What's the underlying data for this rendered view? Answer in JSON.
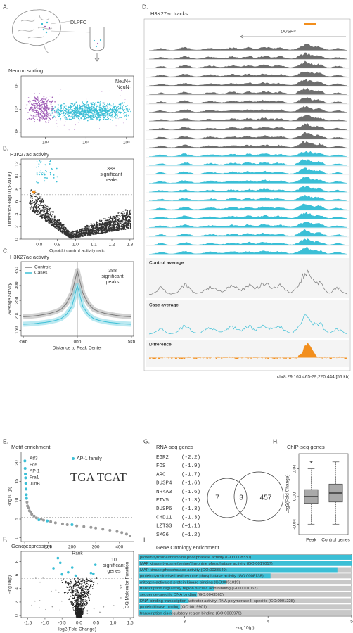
{
  "chart_data": [
    {
      "type": "scatter",
      "panel": "A.",
      "label": "DLPFC",
      "title": "Neuron sorting",
      "series": [
        {
          "name": "NeuN+",
          "color": "#3bbfd6"
        },
        {
          "name": "NeuN-",
          "color": "#a160b8"
        }
      ],
      "xscale": "log",
      "yscale": "log",
      "xlim": [
        250,
        150000
      ],
      "xticks": [
        {
          "value": 1000,
          "label": "10³"
        },
        {
          "value": 10000,
          "label": "10⁴"
        },
        {
          "value": 100000,
          "label": "10⁵"
        }
      ],
      "ylim": [
        60,
        30000
      ],
      "yticks": [
        {
          "value": 100,
          "label": "10²"
        },
        {
          "value": 1000,
          "label": "10³"
        },
        {
          "value": 10000,
          "label": "10⁴"
        }
      ]
    },
    {
      "type": "scatter",
      "panel": "B.",
      "title": "H3K27ac activity",
      "annotation": [
        "388",
        "significant",
        "peaks"
      ],
      "xlabel": "Opioid / control activity ratio",
      "ylabel": "Difference -log10 (p-value)",
      "xlim": [
        0.7,
        1.32
      ],
      "xticks": [
        0.8,
        0.9,
        {
          "value": 1,
          "label": "1.0"
        },
        1.1,
        1.2,
        1.3
      ],
      "ylim": [
        0,
        12.8
      ],
      "yticks": [
        0,
        2,
        4,
        6,
        8,
        10,
        12
      ],
      "threshold": 7.1,
      "highlight": {
        "x": 0.77,
        "y": 7.5,
        "color": "#f28e1c"
      },
      "color": "#333333",
      "sig_color": "#3bbfd6"
    },
    {
      "type": "line",
      "panel": "C.",
      "title": "H3K27ac activity",
      "annotation": [
        "388",
        "significant",
        "peaks"
      ],
      "xlabel": "Distance to Peak Center",
      "ylabel": "Average activity",
      "x": [
        -5,
        -4.5,
        -4,
        -3.5,
        -3,
        -2.5,
        -2,
        -1.5,
        -1,
        -0.5,
        0,
        0.5,
        1,
        1.5,
        2,
        2.5,
        3,
        3.5,
        4,
        4.5,
        5
      ],
      "series": [
        {
          "name": "Controls",
          "color": "#7a7a7a",
          "values": [
            195,
            196,
            198,
            200,
            203,
            207,
            212,
            220,
            240,
            275,
            350,
            275,
            240,
            220,
            212,
            207,
            203,
            200,
            198,
            196,
            195
          ]
        },
        {
          "name": "Cases",
          "color": "#3bbfd6",
          "values": [
            170,
            171,
            172,
            174,
            176,
            179,
            183,
            189,
            203,
            230,
            300,
            230,
            203,
            189,
            183,
            179,
            176,
            174,
            172,
            171,
            170
          ]
        }
      ],
      "xlim": [
        -5.2,
        5.2
      ],
      "xticks": [
        {
          "value": -5,
          "label": "-5kb"
        },
        {
          "value": 0,
          "label": "0bp"
        },
        {
          "value": 5,
          "label": "5kb"
        }
      ],
      "ylim": [
        130,
        380
      ],
      "yticks": [
        150,
        200,
        250,
        300,
        350
      ]
    },
    {
      "type": "tracks",
      "panel": "D.",
      "title": "H3K27ac tracks",
      "gene": "DUSP4",
      "highlight_color": "#f28e1c",
      "groups": [
        {
          "color": "#6e6e6e",
          "count": 12
        },
        {
          "color": "#3bbfd6",
          "count": 12
        }
      ],
      "averages": [
        {
          "name": "Control average",
          "color": "#7a7a7a"
        },
        {
          "name": "Case average",
          "color": "#3bbfd6"
        },
        {
          "name": "Difference",
          "color": "#f28e1c"
        }
      ],
      "coordinates": "chr8:29,163,465-29,220,444 [56 kb]"
    },
    {
      "type": "scatter",
      "panel": "E.",
      "title": "Motif enrichment",
      "xlabel": "Rank",
      "ylabel": "-log10 (p)",
      "xlim": [
        -15,
        460
      ],
      "xticks": [
        0,
        100,
        200,
        300,
        400
      ],
      "ylim": [
        -1,
        23
      ],
      "yticks": [
        0,
        5,
        10,
        15,
        20
      ],
      "threshold": 5.5,
      "series": [
        {
          "name": "AP-1 family",
          "color": "#3bbfd6",
          "x": [
            1,
            2,
            3,
            4,
            5,
            6,
            7,
            8,
            60,
            95,
            200
          ],
          "values": [
            20.5,
            18.5,
            17,
            16,
            14.5,
            13,
            11.5,
            10.5,
            4.8,
            4.5,
            3.5
          ]
        },
        {
          "color": "#9a9a9a",
          "x": [
            10,
            12,
            15,
            20,
            25,
            30,
            40,
            50,
            70,
            80,
            110,
            130,
            160,
            180,
            220,
            250,
            280,
            300,
            330,
            360,
            390,
            410,
            430,
            445
          ],
          "values": [
            9.5,
            8.5,
            8,
            7.2,
            6.8,
            6.3,
            5.8,
            5.3,
            4.9,
            4.7,
            4.3,
            4.0,
            3.7,
            3.5,
            3.2,
            3.0,
            2.8,
            2.6,
            2.3,
            2.0,
            1.7,
            1.4,
            1.0,
            0.5
          ]
        }
      ],
      "motifs": [
        {
          "text": "Atf3",
          "color": "#3bbfd6"
        },
        {
          "text": "Fos",
          "color": "#3bbfd6"
        },
        {
          "text": "AP-1",
          "color": "#3bbfd6"
        },
        {
          "text": "Fra1",
          "color": "#9a9a9a"
        },
        {
          "text": "JunB",
          "color": "#9a9a9a"
        }
      ],
      "logo": "TGA TCAT"
    },
    {
      "type": "scatter",
      "panel": "F.",
      "title": "Gene expression",
      "annotation": [
        "10",
        "significant",
        "genes"
      ],
      "xlabel": "log2(Fold Change)",
      "ylabel": "-log10(p)",
      "xlim": [
        -1.7,
        1.6
      ],
      "xticks": [
        -1.5,
        {
          "value": -1,
          "label": "-1.0"
        },
        -0.5,
        {
          "value": 0,
          "label": "0.0"
        },
        0.5,
        {
          "value": 1,
          "label": "1.0"
        },
        1.5
      ],
      "ylim": [
        -0.3,
        9.5
      ],
      "yticks": [
        0,
        2,
        4,
        6,
        8
      ],
      "threshold": 5.5,
      "series": [
        {
          "color": "#3bbfd6",
          "x": [
            -0.62,
            -0.55,
            -0.75,
            -0.2,
            -0.5,
            -0.32,
            -0.1,
            0.35,
            0.48,
            0.42
          ],
          "values": [
            8.5,
            7.8,
            7.0,
            7.1,
            6.1,
            6.4,
            5.9,
            6.3,
            7.5,
            6.2
          ]
        }
      ]
    },
    {
      "type": "list",
      "panel": "G.",
      "title": "RNA-seq genes",
      "highlight_color": "#3bbfd6",
      "genes": [
        {
          "name": "EGR2",
          "value": "(-2.2)"
        },
        {
          "name": "FOS",
          "value": "(-1.9)"
        },
        {
          "name": "ARC",
          "value": "(-1.7)"
        },
        {
          "name": "DUSP4",
          "value": "(-1.6)",
          "highlight": true
        },
        {
          "name": "NR4A3",
          "value": "(-1.6)"
        },
        {
          "name": "ETV5",
          "value": "(-1.3)",
          "highlight": true
        },
        {
          "name": "DUSP6",
          "value": "(-1.3)",
          "highlight": true
        },
        {
          "name": "CHD11",
          "value": "(-1.3)"
        },
        {
          "name": "LZTS3",
          "value": "(+1.1)"
        },
        {
          "name": "SMG6",
          "value": "(+1.2)"
        }
      ],
      "venn": {
        "left": 7,
        "overlap": 3,
        "right": 457
      }
    },
    {
      "type": "box",
      "panel": "H.",
      "title": "ChIP-seq genes",
      "ylabel": "Log2(Fold Change)",
      "annotation": "*",
      "categories": [
        "Peak",
        "Control genes"
      ],
      "color": "#a9a9a9",
      "boxes": [
        {
          "whislo": -0.04,
          "q1": -0.01,
          "med": 0.0,
          "q3": 0.01,
          "whishi": 0.04
        },
        {
          "whislo": -0.04,
          "q1": -0.008,
          "med": 0.005,
          "q3": 0.018,
          "whishi": 0.05
        }
      ],
      "ylim": [
        -0.055,
        0.062
      ],
      "yticks": [
        -0.04,
        {
          "value": 0,
          "label": "0.00"
        },
        0.04
      ]
    },
    {
      "type": "bar",
      "panel": "I.",
      "title": "Gene Ontology enrichment",
      "xlabel": "-log10(p)",
      "ylabel": "GO Molecular Function",
      "categories": [
        "protein tyrosine/threonine phosphatase activity (GO:0008330)",
        "MAP kinase tyrosine/serine/threonine phosphatase activity (GO:0017017)",
        "MAP kinase phosphatase activity (GO:0033549)",
        "protein tyrosine/serine/threonine phosphatase activity (GO:0008138)",
        "mitogen-activated protein kinase binding (GO:0051019)",
        "transcription regulatory region nucleic acid binding (GO:0001067)",
        "sequence-specific DNA binding (GO:0043565)",
        "DNA-binding transcription activator activity, RNA polymerase II-specific (GO:0001228)",
        "protein kinase binding (GO:0019901)",
        "transcription cis-regulatory region binding (GO:0000976)"
      ],
      "values": [
        5.0,
        5.0,
        4.83,
        4.03,
        3.5,
        3.35,
        3.15,
        3.05,
        2.95,
        2.85
      ],
      "color": "#3bbfd6",
      "background": "#c8c8c8",
      "xlim": [
        2.45,
        5.0
      ],
      "xticks": [
        3,
        4,
        5
      ]
    }
  ]
}
